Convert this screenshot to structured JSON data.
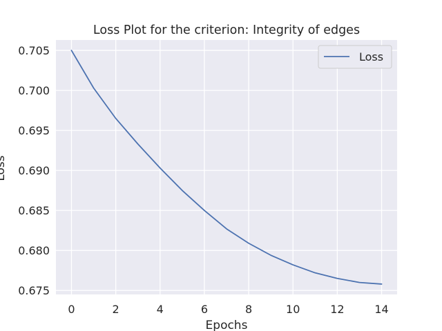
{
  "chart_data": {
    "type": "line",
    "title": "Loss Plot for the criterion: Integrity of edges",
    "xlabel": "Epochs",
    "ylabel": "Loss",
    "x": [
      0,
      1,
      2,
      3,
      4,
      5,
      6,
      7,
      8,
      9,
      10,
      11,
      12,
      13,
      14
    ],
    "series": [
      {
        "name": "Loss",
        "color": "#4c72b0",
        "values": [
          0.705,
          0.7003,
          0.6965,
          0.6933,
          0.6903,
          0.6875,
          0.685,
          0.6827,
          0.6809,
          0.6794,
          0.6782,
          0.6772,
          0.6765,
          0.676,
          0.6758
        ]
      }
    ],
    "xlim": [
      -0.7,
      14.7
    ],
    "ylim": [
      0.6745,
      0.7063
    ],
    "xticks": [
      0,
      2,
      4,
      6,
      8,
      10,
      12,
      14
    ],
    "xtick_labels": [
      "0",
      "2",
      "4",
      "6",
      "8",
      "10",
      "12",
      "14"
    ],
    "yticks": [
      0.675,
      0.68,
      0.685,
      0.69,
      0.695,
      0.7,
      0.705
    ],
    "ytick_labels": [
      "0.675",
      "0.680",
      "0.685",
      "0.690",
      "0.695",
      "0.700",
      "0.705"
    ],
    "grid": true,
    "legend_position": "top-right",
    "plot_background": "#eaeaf2",
    "grid_color": "#ffffff"
  }
}
